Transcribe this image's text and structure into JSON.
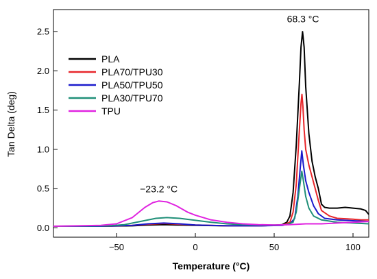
{
  "chart_data": {
    "type": "line",
    "xlabel": "Temperature (°C)",
    "ylabel": "Tan Delta (deg)",
    "xlim": [
      -90,
      110
    ],
    "ylim": [
      -0.12,
      2.78
    ],
    "x_ticks": [
      -50,
      0,
      50,
      100
    ],
    "y_ticks": [
      0.0,
      0.5,
      1.0,
      1.5,
      2.0,
      2.5
    ],
    "x_tick_labels": [
      "−50",
      "0",
      "50",
      "100"
    ],
    "y_tick_labels": [
      "0.0",
      "0.5",
      "1.0",
      "1.5",
      "2.0",
      "2.5"
    ],
    "legend_position": "top-left",
    "grid": false,
    "annotations": [
      {
        "text": "68.3 °C",
        "x": 68.3,
        "y": 2.62
      },
      {
        "text": "−23.2 °C",
        "x": -23.2,
        "y": 0.45
      }
    ],
    "series": [
      {
        "name": "PLA",
        "color": "#000000",
        "points": [
          [
            -90,
            0.02
          ],
          [
            -60,
            0.02
          ],
          [
            -40,
            0.025
          ],
          [
            -30,
            0.035
          ],
          [
            -20,
            0.04
          ],
          [
            -10,
            0.035
          ],
          [
            0,
            0.03
          ],
          [
            20,
            0.025
          ],
          [
            40,
            0.025
          ],
          [
            50,
            0.03
          ],
          [
            55,
            0.04
          ],
          [
            58,
            0.07
          ],
          [
            60,
            0.15
          ],
          [
            62,
            0.45
          ],
          [
            64,
            1.05
          ],
          [
            66,
            1.85
          ],
          [
            67,
            2.3
          ],
          [
            68,
            2.5
          ],
          [
            69,
            2.3
          ],
          [
            70,
            1.8
          ],
          [
            72,
            1.2
          ],
          [
            74,
            0.85
          ],
          [
            76,
            0.65
          ],
          [
            78,
            0.5
          ],
          [
            80,
            0.3
          ],
          [
            82,
            0.26
          ],
          [
            85,
            0.25
          ],
          [
            90,
            0.25
          ],
          [
            95,
            0.26
          ],
          [
            100,
            0.25
          ],
          [
            105,
            0.24
          ],
          [
            108,
            0.22
          ],
          [
            110,
            0.17
          ]
        ]
      },
      {
        "name": "PLA70/TPU30",
        "color": "#e8262a",
        "points": [
          [
            -90,
            0.02
          ],
          [
            -60,
            0.02
          ],
          [
            -40,
            0.03
          ],
          [
            -30,
            0.045
          ],
          [
            -20,
            0.055
          ],
          [
            -10,
            0.045
          ],
          [
            0,
            0.035
          ],
          [
            20,
            0.025
          ],
          [
            40,
            0.025
          ],
          [
            50,
            0.03
          ],
          [
            56,
            0.04
          ],
          [
            60,
            0.07
          ],
          [
            62,
            0.2
          ],
          [
            64,
            0.55
          ],
          [
            66,
            1.25
          ],
          [
            67,
            1.58
          ],
          [
            67.6,
            1.7
          ],
          [
            68.2,
            1.55
          ],
          [
            69,
            1.25
          ],
          [
            70,
            1.0
          ],
          [
            72,
            0.8
          ],
          [
            74,
            0.65
          ],
          [
            76,
            0.5
          ],
          [
            78,
            0.35
          ],
          [
            80,
            0.22
          ],
          [
            85,
            0.15
          ],
          [
            90,
            0.12
          ],
          [
            100,
            0.11
          ],
          [
            105,
            0.1
          ],
          [
            110,
            0.1
          ]
        ]
      },
      {
        "name": "PLA50/TPU50",
        "color": "#1a1acc",
        "points": [
          [
            -90,
            0.02
          ],
          [
            -60,
            0.02
          ],
          [
            -40,
            0.03
          ],
          [
            -30,
            0.05
          ],
          [
            -20,
            0.06
          ],
          [
            -10,
            0.05
          ],
          [
            0,
            0.035
          ],
          [
            20,
            0.025
          ],
          [
            40,
            0.025
          ],
          [
            55,
            0.03
          ],
          [
            60,
            0.05
          ],
          [
            63,
            0.12
          ],
          [
            65,
            0.4
          ],
          [
            66.5,
            0.75
          ],
          [
            67.5,
            0.98
          ],
          [
            68.5,
            0.8
          ],
          [
            70,
            0.6
          ],
          [
            72,
            0.45
          ],
          [
            75,
            0.28
          ],
          [
            78,
            0.18
          ],
          [
            82,
            0.12
          ],
          [
            90,
            0.1
          ],
          [
            100,
            0.09
          ],
          [
            110,
            0.08
          ]
        ]
      },
      {
        "name": "PLA30/TPU70",
        "color": "#1f8f78",
        "points": [
          [
            -90,
            0.02
          ],
          [
            -55,
            0.025
          ],
          [
            -45,
            0.04
          ],
          [
            -35,
            0.08
          ],
          [
            -25,
            0.12
          ],
          [
            -18,
            0.13
          ],
          [
            -10,
            0.12
          ],
          [
            0,
            0.095
          ],
          [
            10,
            0.07
          ],
          [
            20,
            0.05
          ],
          [
            30,
            0.04
          ],
          [
            40,
            0.035
          ],
          [
            50,
            0.035
          ],
          [
            58,
            0.04
          ],
          [
            62,
            0.07
          ],
          [
            64,
            0.2
          ],
          [
            66,
            0.5
          ],
          [
            67.5,
            0.72
          ],
          [
            68.5,
            0.6
          ],
          [
            70,
            0.4
          ],
          [
            72,
            0.25
          ],
          [
            75,
            0.15
          ],
          [
            80,
            0.1
          ],
          [
            90,
            0.07
          ],
          [
            100,
            0.06
          ],
          [
            110,
            0.05
          ]
        ]
      },
      {
        "name": "TPU",
        "color": "#e023e0",
        "points": [
          [
            -90,
            0.02
          ],
          [
            -60,
            0.03
          ],
          [
            -50,
            0.05
          ],
          [
            -40,
            0.13
          ],
          [
            -32,
            0.26
          ],
          [
            -27,
            0.32
          ],
          [
            -23.2,
            0.34
          ],
          [
            -18,
            0.33
          ],
          [
            -12,
            0.28
          ],
          [
            -5,
            0.2
          ],
          [
            0,
            0.16
          ],
          [
            10,
            0.1
          ],
          [
            20,
            0.07
          ],
          [
            30,
            0.05
          ],
          [
            40,
            0.04
          ],
          [
            50,
            0.035
          ],
          [
            60,
            0.04
          ],
          [
            70,
            0.05
          ],
          [
            80,
            0.05
          ],
          [
            90,
            0.06
          ],
          [
            100,
            0.07
          ],
          [
            110,
            0.08
          ]
        ]
      }
    ]
  }
}
